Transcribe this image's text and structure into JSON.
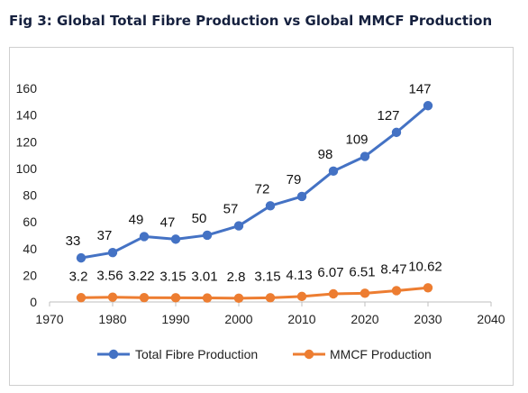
{
  "figure": {
    "title": "Fig 3: Global Total Fibre Production vs Global MMCF Production"
  },
  "chart_data": {
    "type": "line",
    "title": "",
    "xlabel": "",
    "ylabel": "",
    "x": [
      1975,
      1980,
      1985,
      1990,
      1995,
      2000,
      2005,
      2010,
      2015,
      2020,
      2025,
      2030
    ],
    "xlim": [
      1970,
      2040
    ],
    "xticks": [
      1970,
      1980,
      1990,
      2000,
      2010,
      2020,
      2030,
      2040
    ],
    "ylim": [
      0,
      160
    ],
    "yticks": [
      0,
      20,
      40,
      60,
      80,
      100,
      120,
      140,
      160
    ],
    "grid": false,
    "legend_position": "bottom",
    "series": [
      {
        "name": "Total Fibre Production",
        "color": "#4472c4",
        "values": [
          33,
          37,
          49,
          47,
          50,
          57,
          72,
          79,
          98,
          109,
          127,
          147
        ],
        "labels": [
          "33",
          "37",
          "49",
          "47",
          "50",
          "57",
          "72",
          "79",
          "98",
          "109",
          "127",
          "147"
        ]
      },
      {
        "name": "MMCF Production",
        "color": "#ed7d31",
        "values": [
          3.2,
          3.56,
          3.22,
          3.15,
          3.01,
          2.8,
          3.15,
          4.13,
          6.07,
          6.51,
          8.47,
          10.62
        ],
        "labels": [
          "3.2",
          "3.56",
          "3.22",
          "3.15",
          "3.01",
          "2.8",
          "3.15",
          "4.13",
          "6.07",
          "6.51",
          "8.47",
          "10.62"
        ]
      }
    ]
  }
}
